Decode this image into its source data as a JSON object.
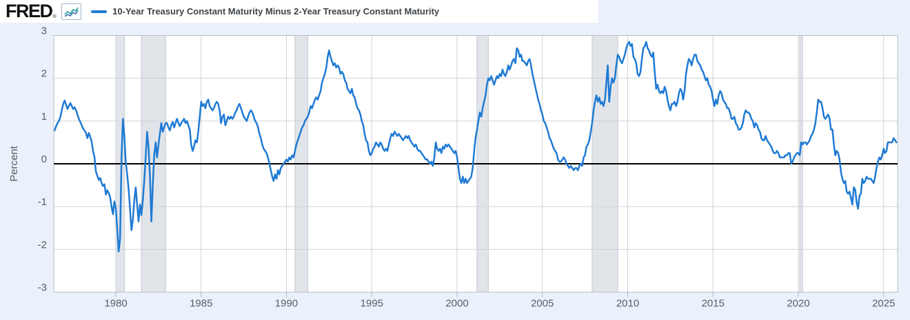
{
  "header": {
    "logo_text": "FRED",
    "registered_mark": "®",
    "sparkline_icon": "fred-sparkline-icon"
  },
  "chart_data": {
    "type": "line",
    "title": "10-Year Treasury Constant Maturity Minus 2-Year Treasury Constant Maturity",
    "ylabel": "Percent",
    "xlabel": "",
    "series_name": "10-Year Treasury Constant Maturity Minus 2-Year Treasury Constant Maturity",
    "line_color": "#1f7ad4",
    "background_color": "#eaf1fa",
    "plot_background": "#ffffff",
    "grid_color": "#cdd2d8",
    "frame_color": "#b8bfc7",
    "zero_line_color": "#000000",
    "recession_fill": "#e1e5ea",
    "recession_edge": "#c3c8cf",
    "tick_text_color": "#565d64",
    "grid": true,
    "legend_position": "top-left",
    "ylim": [
      -3,
      3
    ],
    "y_ticks": [
      3,
      2,
      1,
      0,
      -1,
      -2,
      -3
    ],
    "x_ticks": [
      1980,
      1985,
      1990,
      1995,
      2000,
      2005,
      2010,
      2015,
      2020,
      2025
    ],
    "x_range_years": [
      1976.4167,
      2025.8
    ],
    "zero_line": 0,
    "recessions": [
      {
        "start": 1980.0,
        "end": 1980.5
      },
      {
        "start": 1981.5,
        "end": 1982.9167
      },
      {
        "start": 1990.5,
        "end": 1991.25
      },
      {
        "start": 2001.1667,
        "end": 2001.8333
      },
      {
        "start": 2007.9167,
        "end": 2009.4167
      },
      {
        "start": 2020.0833,
        "end": 2020.25
      }
    ],
    "series_start_year": 1976.4167,
    "series_step_years": 0.0833333,
    "values": [
      0.78,
      0.88,
      0.95,
      1.0,
      1.1,
      1.25,
      1.4,
      1.48,
      1.38,
      1.28,
      1.35,
      1.42,
      1.35,
      1.28,
      1.32,
      1.25,
      1.15,
      1.05,
      0.98,
      0.9,
      0.82,
      0.78,
      0.72,
      0.6,
      0.72,
      0.63,
      0.52,
      0.3,
      0.15,
      -0.18,
      -0.28,
      -0.38,
      -0.33,
      -0.45,
      -0.52,
      -0.48,
      -0.72,
      -0.62,
      -0.68,
      -0.78,
      -1.0,
      -1.18,
      -0.88,
      -1.05,
      -1.52,
      -2.05,
      -1.75,
      0.15,
      1.05,
      0.65,
      0.05,
      -0.25,
      -0.6,
      -1.05,
      -1.55,
      -1.3,
      -0.85,
      -0.55,
      -0.95,
      -1.35,
      -0.95,
      -1.2,
      -0.85,
      -0.38,
      0.15,
      0.75,
      0.4,
      -0.3,
      -1.35,
      -0.5,
      0.2,
      0.5,
      0.15,
      0.45,
      0.7,
      0.95,
      0.75,
      0.85,
      0.95,
      0.95,
      0.85,
      0.78,
      0.9,
      0.98,
      0.85,
      0.95,
      1.05,
      0.95,
      0.88,
      0.95,
      1.0,
      1.05,
      0.95,
      1.0,
      0.9,
      0.8,
      0.45,
      0.3,
      0.4,
      0.55,
      0.5,
      0.75,
      1.1,
      1.45,
      1.35,
      1.4,
      1.3,
      1.45,
      1.5,
      1.35,
      1.3,
      1.25,
      1.3,
      1.4,
      1.45,
      1.4,
      1.25,
      0.95,
      1.1,
      1.15,
      0.9,
      1.0,
      1.1,
      1.05,
      1.1,
      1.05,
      1.1,
      1.2,
      1.25,
      1.35,
      1.4,
      1.3,
      1.2,
      1.1,
      1.05,
      1.0,
      1.1,
      1.2,
      1.25,
      1.2,
      1.1,
      1.0,
      0.95,
      0.85,
      0.7,
      0.6,
      0.45,
      0.35,
      0.3,
      0.25,
      0.15,
      0.0,
      -0.15,
      -0.3,
      -0.4,
      -0.25,
      -0.35,
      -0.15,
      -0.25,
      -0.1,
      -0.05,
      0.0,
      0.05,
      0.1,
      0.05,
      0.15,
      0.1,
      0.2,
      0.15,
      0.3,
      0.45,
      0.55,
      0.65,
      0.75,
      0.85,
      0.9,
      1.0,
      1.05,
      1.1,
      1.2,
      1.35,
      1.3,
      1.4,
      1.5,
      1.55,
      1.5,
      1.6,
      1.7,
      1.9,
      2.0,
      2.1,
      2.25,
      2.5,
      2.65,
      2.5,
      2.4,
      2.3,
      2.35,
      2.25,
      2.3,
      2.25,
      2.1,
      2.15,
      2.1,
      1.95,
      1.9,
      1.75,
      1.7,
      1.65,
      1.75,
      1.6,
      1.55,
      1.4,
      1.3,
      1.25,
      1.15,
      1.0,
      0.9,
      0.7,
      0.55,
      0.5,
      0.3,
      0.2,
      0.25,
      0.35,
      0.4,
      0.5,
      0.45,
      0.4,
      0.5,
      0.45,
      0.35,
      0.3,
      0.35,
      0.3,
      0.45,
      0.6,
      0.7,
      0.65,
      0.75,
      0.7,
      0.65,
      0.7,
      0.65,
      0.6,
      0.55,
      0.6,
      0.65,
      0.6,
      0.65,
      0.55,
      0.5,
      0.45,
      0.4,
      0.45,
      0.35,
      0.3,
      0.3,
      0.25,
      0.2,
      0.15,
      0.1,
      0.1,
      0.05,
      0.0,
      0.05,
      -0.05,
      0.15,
      0.5,
      0.35,
      0.3,
      0.35,
      0.25,
      0.4,
      0.35,
      0.45,
      0.4,
      0.45,
      0.4,
      0.35,
      0.3,
      0.25,
      0.3,
      0.15,
      -0.1,
      -0.35,
      -0.45,
      -0.3,
      -0.45,
      -0.35,
      -0.45,
      -0.4,
      -0.35,
      -0.3,
      -0.1,
      0.3,
      0.6,
      0.8,
      1.0,
      1.2,
      1.1,
      1.3,
      1.45,
      1.6,
      1.85,
      2.0,
      1.95,
      2.05,
      1.95,
      1.85,
      1.95,
      2.05,
      2.0,
      2.1,
      2.05,
      2.2,
      2.1,
      2.05,
      2.15,
      2.3,
      2.2,
      2.3,
      2.4,
      2.45,
      2.35,
      2.7,
      2.65,
      2.5,
      2.55,
      2.4,
      2.4,
      2.35,
      2.3,
      2.4,
      2.45,
      2.3,
      2.1,
      1.95,
      1.8,
      1.65,
      1.5,
      1.4,
      1.25,
      1.15,
      1.0,
      0.95,
      0.85,
      0.75,
      0.6,
      0.55,
      0.45,
      0.35,
      0.3,
      0.25,
      0.1,
      0.05,
      0.05,
      0.1,
      0.15,
      0.1,
      0.0,
      -0.05,
      -0.1,
      -0.05,
      -0.1,
      -0.15,
      -0.1,
      -0.1,
      -0.15,
      -0.05,
      0.0,
      -0.05,
      0.15,
      0.2,
      0.4,
      0.45,
      0.55,
      0.75,
      0.95,
      1.25,
      1.45,
      1.6,
      1.45,
      1.55,
      1.4,
      1.45,
      1.35,
      1.5,
      1.9,
      2.3,
      1.45,
      1.8,
      2.0,
      1.9,
      2.0,
      2.3,
      2.55,
      2.5,
      2.4,
      2.35,
      2.45,
      2.55,
      2.7,
      2.8,
      2.85,
      2.75,
      2.8,
      2.5,
      2.45,
      2.35,
      2.1,
      2.05,
      2.15,
      2.45,
      2.7,
      2.75,
      2.85,
      2.7,
      2.65,
      2.55,
      2.5,
      2.6,
      2.15,
      1.75,
      1.85,
      1.7,
      1.65,
      1.7,
      1.65,
      1.8,
      1.7,
      1.5,
      1.35,
      1.25,
      1.4,
      1.4,
      1.45,
      1.35,
      1.45,
      1.65,
      1.75,
      1.7,
      1.5,
      1.7,
      2.1,
      2.3,
      2.45,
      2.4,
      2.3,
      2.45,
      2.55,
      2.55,
      2.4,
      2.35,
      2.3,
      2.2,
      2.15,
      2.05,
      1.95,
      2.0,
      1.85,
      1.8,
      1.7,
      1.5,
      1.35,
      1.5,
      1.4,
      1.6,
      1.7,
      1.65,
      1.5,
      1.45,
      1.4,
      1.3,
      1.3,
      1.2,
      1.05,
      1.05,
      1.1,
      0.95,
      0.9,
      0.8,
      0.8,
      0.85,
      0.95,
      1.15,
      1.25,
      1.2,
      1.2,
      1.15,
      1.05,
      1.0,
      0.85,
      0.95,
      0.9,
      0.8,
      0.75,
      0.6,
      0.55,
      0.55,
      0.65,
      0.55,
      0.5,
      0.45,
      0.4,
      0.3,
      0.25,
      0.25,
      0.3,
      0.25,
      0.15,
      0.15,
      0.15,
      0.15,
      0.2,
      0.2,
      0.25,
      0.25,
      0.0,
      0.05,
      0.15,
      0.2,
      0.25,
      0.25,
      0.2,
      0.5,
      0.45,
      0.5,
      0.5,
      0.45,
      0.5,
      0.55,
      0.65,
      0.7,
      0.8,
      0.95,
      1.2,
      1.5,
      1.45,
      1.45,
      1.3,
      1.1,
      1.05,
      1.1,
      1.15,
      1.05,
      0.8,
      0.8,
      0.45,
      0.2,
      0.3,
      0.25,
      0.1,
      -0.2,
      -0.35,
      -0.45,
      -0.4,
      -0.65,
      -0.7,
      -0.65,
      -0.8,
      -0.95,
      -0.55,
      -0.6,
      -0.9,
      -1.05,
      -0.75,
      -0.7,
      -0.35,
      -0.45,
      -0.4,
      -0.3,
      -0.35,
      -0.35,
      -0.35,
      -0.4,
      -0.45,
      -0.3,
      -0.1,
      0.05,
      0.15,
      0.1,
      0.2,
      0.35,
      0.25,
      0.3,
      0.5,
      0.5,
      0.5,
      0.5,
      0.6,
      0.55,
      0.5
    ]
  }
}
